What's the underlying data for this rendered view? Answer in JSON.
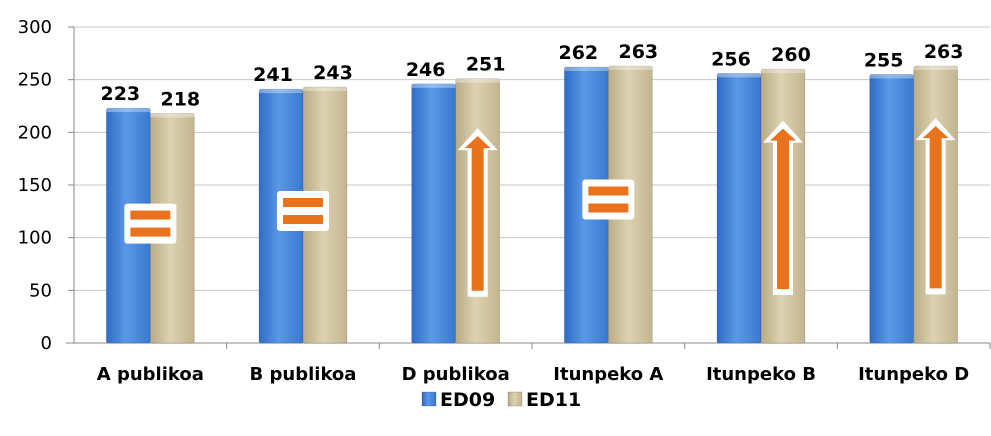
{
  "chart_data": {
    "type": "bar",
    "categories": [
      "A publikoa",
      "B publikoa",
      "D publikoa",
      "Itunpeko A",
      "Itunpeko B",
      "Itunpeko D"
    ],
    "series": [
      {
        "name": "ED09",
        "values": [
          223,
          241,
          246,
          262,
          256,
          255
        ],
        "color": "#4a86d8"
      },
      {
        "name": "ED11",
        "values": [
          218,
          243,
          251,
          263,
          260,
          263
        ],
        "color": "#cfc3a0"
      }
    ],
    "ylim": [
      0,
      300
    ],
    "yticks": [
      "0",
      "50",
      "100",
      "150",
      "200",
      "250",
      "300"
    ],
    "grid": true,
    "legend": "bottom",
    "annotations": [
      {
        "category": "A publikoa",
        "symbol": "equal"
      },
      {
        "category": "B publikoa",
        "symbol": "equal"
      },
      {
        "category": "D publikoa",
        "symbol": "up-arrow"
      },
      {
        "category": "Itunpeko A",
        "symbol": "equal"
      },
      {
        "category": "Itunpeko B",
        "symbol": "up-arrow"
      },
      {
        "category": "Itunpeko D",
        "symbol": "up-arrow"
      }
    ],
    "annotation_color": "#e8731c"
  }
}
